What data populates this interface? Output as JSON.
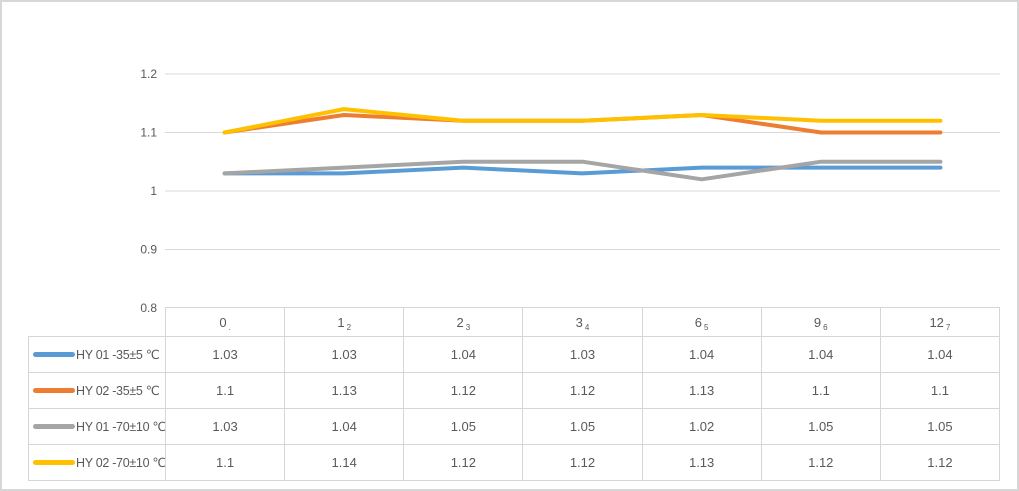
{
  "chart_data": {
    "type": "line",
    "title": "",
    "xlabel": "",
    "ylabel": "",
    "categories": [
      "0",
      "1",
      "2",
      "3",
      "6",
      "9",
      "12"
    ],
    "category_sub_labels": [
      ".",
      "2",
      "3",
      "4",
      "5",
      "6",
      "7"
    ],
    "y_axis": {
      "min": 0.8,
      "max": 1.2,
      "ticks": [
        1.2,
        1.1,
        1,
        0.9,
        0.8
      ]
    },
    "grid": true,
    "legend_position": "data-table-left-column",
    "series": [
      {
        "id": "hy01-35",
        "name": "HY 01 -35±5 ℃",
        "color": "#5B9BD5",
        "values": [
          1.03,
          1.03,
          1.04,
          1.03,
          1.04,
          1.04,
          1.04
        ]
      },
      {
        "id": "hy02-35",
        "name": "HY 02 -35±5 ℃",
        "color": "#ED7D31",
        "values": [
          1.1,
          1.13,
          1.12,
          1.12,
          1.13,
          1.1,
          1.1
        ]
      },
      {
        "id": "hy01-70",
        "name": "HY 01 -70±10 ℃",
        "color": "#A5A5A5",
        "values": [
          1.03,
          1.04,
          1.05,
          1.05,
          1.02,
          1.05,
          1.05
        ]
      },
      {
        "id": "hy02-70",
        "name": "HY 02 -70±10 ℃",
        "color": "#FFC000",
        "values": [
          1.1,
          1.14,
          1.12,
          1.12,
          1.13,
          1.12,
          1.12
        ]
      }
    ]
  },
  "colors": {
    "gridline": "#D9D9D9",
    "axis_text": "#595959",
    "table_border": "#D6D6D6",
    "table_text": "#595959",
    "frame_border": "#D7D7D7"
  }
}
